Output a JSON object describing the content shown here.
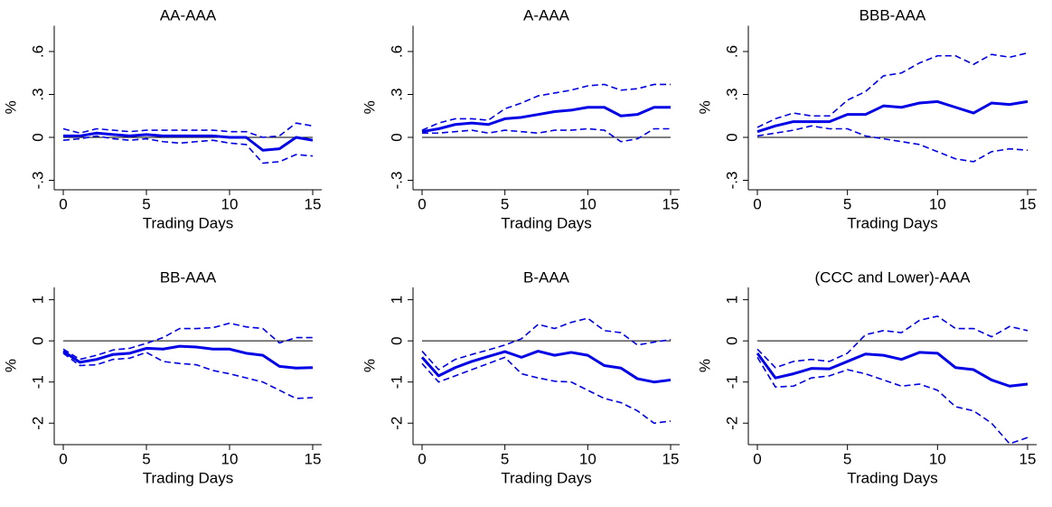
{
  "chart_data": [
    {
      "type": "line",
      "title": "AA-AAA",
      "xlabel": "Trading Days",
      "ylabel": "%",
      "x": [
        0,
        1,
        2,
        3,
        4,
        5,
        6,
        7,
        8,
        9,
        10,
        11,
        12,
        13,
        14,
        15
      ],
      "xlim": [
        0,
        15
      ],
      "xticks": [
        0,
        5,
        10,
        15
      ],
      "ylim": [
        -0.36,
        0.78
      ],
      "yticks": [
        {
          "value": 0.6,
          "label": ".6"
        },
        {
          "value": 0.3,
          "label": ".3"
        },
        0,
        {
          "value": -0.3,
          "label": "-.3"
        }
      ],
      "reference_line": 0,
      "series": [
        {
          "color": "#0000e6",
          "style": "solid",
          "values": [
            0.01,
            0.01,
            0.03,
            0.02,
            0.01,
            0.02,
            0.01,
            0.01,
            0.01,
            0.01,
            0,
            0,
            -0.09,
            -0.08,
            0,
            -0.02
          ]
        },
        {
          "color": "#0000e6",
          "style": "dashed",
          "values": [
            0.06,
            0.03,
            0.06,
            0.05,
            0.04,
            0.05,
            0.05,
            0.05,
            0.05,
            0.05,
            0.04,
            0.04,
            0,
            0.01,
            0.1,
            0.08
          ]
        },
        {
          "color": "#0000e6",
          "style": "dashed",
          "values": [
            -0.02,
            -0.01,
            0.01,
            -0.01,
            -0.02,
            -0.01,
            -0.03,
            -0.04,
            -0.03,
            -0.02,
            -0.04,
            -0.05,
            -0.18,
            -0.17,
            -0.12,
            -0.13
          ]
        }
      ]
    },
    {
      "type": "line",
      "title": "A-AAA",
      "xlabel": "Trading Days",
      "ylabel": "%",
      "x": [
        0,
        1,
        2,
        3,
        4,
        5,
        6,
        7,
        8,
        9,
        10,
        11,
        12,
        13,
        14,
        15
      ],
      "xlim": [
        0,
        15
      ],
      "xticks": [
        0,
        5,
        10,
        15
      ],
      "ylim": [
        -0.36,
        0.78
      ],
      "yticks": [
        {
          "value": 0.6,
          "label": ".6"
        },
        {
          "value": 0.3,
          "label": ".3"
        },
        0,
        {
          "value": -0.3,
          "label": "-.3"
        }
      ],
      "reference_line": 0,
      "series": [
        {
          "color": "#0000e6",
          "style": "solid",
          "values": [
            0.04,
            0.06,
            0.09,
            0.1,
            0.09,
            0.13,
            0.14,
            0.16,
            0.18,
            0.19,
            0.21,
            0.21,
            0.15,
            0.16,
            0.21,
            0.21
          ]
        },
        {
          "color": "#0000e6",
          "style": "dashed",
          "values": [
            0.05,
            0.1,
            0.13,
            0.13,
            0.12,
            0.2,
            0.24,
            0.29,
            0.31,
            0.33,
            0.36,
            0.37,
            0.33,
            0.34,
            0.37,
            0.37
          ]
        },
        {
          "color": "#0000e6",
          "style": "dashed",
          "values": [
            0.03,
            0.03,
            0.04,
            0.05,
            0.03,
            0.05,
            0.04,
            0.03,
            0.05,
            0.05,
            0.06,
            0.05,
            -0.03,
            -0.01,
            0.06,
            0.06
          ]
        }
      ]
    },
    {
      "type": "line",
      "title": "BBB-AAA",
      "xlabel": "Trading Days",
      "ylabel": "%",
      "x": [
        0,
        1,
        2,
        3,
        4,
        5,
        6,
        7,
        8,
        9,
        10,
        11,
        12,
        13,
        14,
        15
      ],
      "xlim": [
        0,
        15
      ],
      "xticks": [
        0,
        5,
        10,
        15
      ],
      "ylim": [
        -0.36,
        0.78
      ],
      "yticks": [
        {
          "value": 0.6,
          "label": ".6"
        },
        {
          "value": 0.3,
          "label": ".3"
        },
        0,
        {
          "value": -0.3,
          "label": "-.3"
        }
      ],
      "reference_line": 0,
      "series": [
        {
          "color": "#0000e6",
          "style": "solid",
          "values": [
            0.04,
            0.08,
            0.11,
            0.11,
            0.11,
            0.16,
            0.16,
            0.22,
            0.21,
            0.24,
            0.25,
            0.21,
            0.17,
            0.24,
            0.23,
            0.25
          ]
        },
        {
          "color": "#0000e6",
          "style": "dashed",
          "values": [
            0.07,
            0.13,
            0.17,
            0.15,
            0.15,
            0.26,
            0.32,
            0.43,
            0.45,
            0.52,
            0.57,
            0.57,
            0.51,
            0.58,
            0.56,
            0.59
          ]
        },
        {
          "color": "#0000e6",
          "style": "dashed",
          "values": [
            0.01,
            0.03,
            0.05,
            0.08,
            0.06,
            0.06,
            0.01,
            -0.01,
            -0.03,
            -0.05,
            -0.1,
            -0.15,
            -0.17,
            -0.1,
            -0.08,
            -0.09
          ]
        }
      ]
    },
    {
      "type": "line",
      "title": "BB-AAA",
      "xlabel": "Trading Days",
      "ylabel": "%",
      "x": [
        0,
        1,
        2,
        3,
        4,
        5,
        6,
        7,
        8,
        9,
        10,
        11,
        12,
        13,
        14,
        15
      ],
      "xlim": [
        0,
        15
      ],
      "xticks": [
        0,
        5,
        10,
        15
      ],
      "ylim": [
        -2.5,
        1.3
      ],
      "yticks": [
        1,
        0,
        -1,
        -2
      ],
      "reference_line": 0,
      "series": [
        {
          "color": "#0000e6",
          "style": "solid",
          "values": [
            -0.25,
            -0.52,
            -0.45,
            -0.33,
            -0.3,
            -0.18,
            -0.2,
            -0.13,
            -0.15,
            -0.2,
            -0.2,
            -0.3,
            -0.35,
            -0.62,
            -0.66,
            -0.65
          ]
        },
        {
          "color": "#0000e6",
          "style": "dashed",
          "values": [
            -0.2,
            -0.45,
            -0.35,
            -0.22,
            -0.18,
            -0.06,
            0.08,
            0.3,
            0.3,
            0.32,
            0.43,
            0.34,
            0.3,
            -0.05,
            0.08,
            0.08
          ]
        },
        {
          "color": "#0000e6",
          "style": "dashed",
          "values": [
            -0.3,
            -0.6,
            -0.58,
            -0.45,
            -0.42,
            -0.28,
            -0.5,
            -0.55,
            -0.58,
            -0.72,
            -0.8,
            -0.9,
            -1.0,
            -1.2,
            -1.4,
            -1.38
          ]
        }
      ]
    },
    {
      "type": "line",
      "title": "B-AAA",
      "xlabel": "Trading Days",
      "ylabel": "%",
      "x": [
        0,
        1,
        2,
        3,
        4,
        5,
        6,
        7,
        8,
        9,
        10,
        11,
        12,
        13,
        14,
        15
      ],
      "xlim": [
        0,
        15
      ],
      "xticks": [
        0,
        5,
        10,
        15
      ],
      "ylim": [
        -2.5,
        1.3
      ],
      "yticks": [
        1,
        0,
        -1,
        -2
      ],
      "reference_line": 0,
      "series": [
        {
          "color": "#0000e6",
          "style": "solid",
          "values": [
            -0.4,
            -0.85,
            -0.65,
            -0.5,
            -0.38,
            -0.26,
            -0.4,
            -0.25,
            -0.35,
            -0.28,
            -0.35,
            -0.6,
            -0.66,
            -0.92,
            -1.0,
            -0.95
          ]
        },
        {
          "color": "#0000e6",
          "style": "dashed",
          "values": [
            -0.25,
            -0.7,
            -0.45,
            -0.33,
            -0.22,
            -0.1,
            0.05,
            0.4,
            0.3,
            0.45,
            0.55,
            0.25,
            0.2,
            -0.1,
            -0.03,
            0.03
          ]
        },
        {
          "color": "#0000e6",
          "style": "dashed",
          "values": [
            -0.55,
            -1.0,
            -0.85,
            -0.7,
            -0.55,
            -0.4,
            -0.8,
            -0.9,
            -0.98,
            -1.0,
            -1.2,
            -1.4,
            -1.5,
            -1.7,
            -2.0,
            -1.95
          ]
        }
      ]
    },
    {
      "type": "line",
      "title": "(CCC and Lower)-AAA",
      "xlabel": "Trading Days",
      "ylabel": "%",
      "x": [
        0,
        1,
        2,
        3,
        4,
        5,
        6,
        7,
        8,
        9,
        10,
        11,
        12,
        13,
        14,
        15
      ],
      "xlim": [
        0,
        15
      ],
      "xticks": [
        0,
        5,
        10,
        15
      ],
      "ylim": [
        -2.5,
        1.3
      ],
      "yticks": [
        1,
        0,
        -1,
        -2
      ],
      "reference_line": 0,
      "series": [
        {
          "color": "#0000e6",
          "style": "solid",
          "values": [
            -0.3,
            -0.9,
            -0.8,
            -0.67,
            -0.68,
            -0.5,
            -0.32,
            -0.35,
            -0.45,
            -0.28,
            -0.3,
            -0.65,
            -0.7,
            -0.95,
            -1.1,
            -1.05
          ]
        },
        {
          "color": "#0000e6",
          "style": "dashed",
          "values": [
            -0.2,
            -0.65,
            -0.5,
            -0.45,
            -0.5,
            -0.3,
            0.15,
            0.25,
            0.2,
            0.5,
            0.6,
            0.3,
            0.3,
            0.1,
            0.35,
            0.25
          ]
        },
        {
          "color": "#0000e6",
          "style": "dashed",
          "values": [
            -0.4,
            -1.12,
            -1.1,
            -0.9,
            -0.85,
            -0.7,
            -0.8,
            -0.95,
            -1.1,
            -1.05,
            -1.2,
            -1.6,
            -1.7,
            -2.0,
            -2.5,
            -2.35
          ]
        }
      ]
    }
  ]
}
